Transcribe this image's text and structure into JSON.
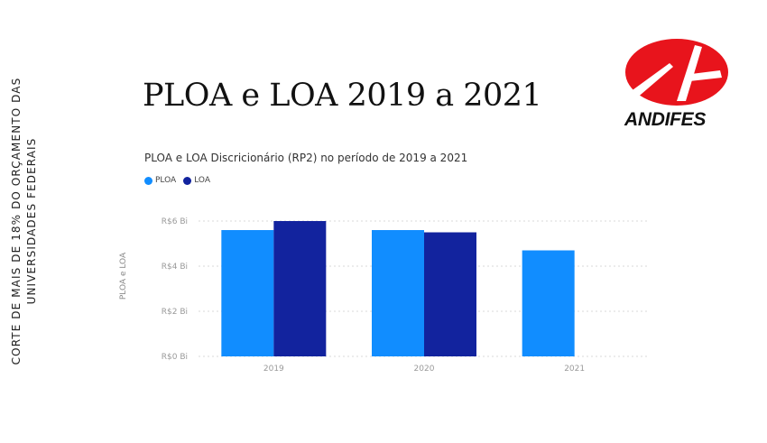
{
  "side_note": {
    "line1": "CORTE DE MAIS DE 18% DO ORÇAMENTO DAS",
    "line2": "UNIVERSIDADES FEDERAIS"
  },
  "slide_title": "PLOA e LOA 2019 a 2021",
  "logo": {
    "text": "ANDIFES",
    "color": "#e8141c"
  },
  "chart_data": {
    "type": "bar",
    "title": "PLOA e LOA Discricionário (RP2) no período de 2019 a 2021",
    "xlabel": "",
    "ylabel": "PLOA e LOA",
    "categories": [
      "2019",
      "2020",
      "2021"
    ],
    "series": [
      {
        "name": "PLOA",
        "color": "#118dff",
        "values": [
          5.6,
          5.6,
          4.7
        ]
      },
      {
        "name": "LOA",
        "color": "#12239e",
        "values": [
          6.0,
          5.5,
          null
        ]
      }
    ],
    "yticks": [
      {
        "value": 0,
        "label": "R$0 Bi"
      },
      {
        "value": 2,
        "label": "R$2 Bi"
      },
      {
        "value": 4,
        "label": "R$4 Bi"
      },
      {
        "value": 6,
        "label": "R$6 Bi"
      }
    ],
    "ylim": [
      0,
      6
    ],
    "grid": true,
    "legend_position": "top-left"
  }
}
